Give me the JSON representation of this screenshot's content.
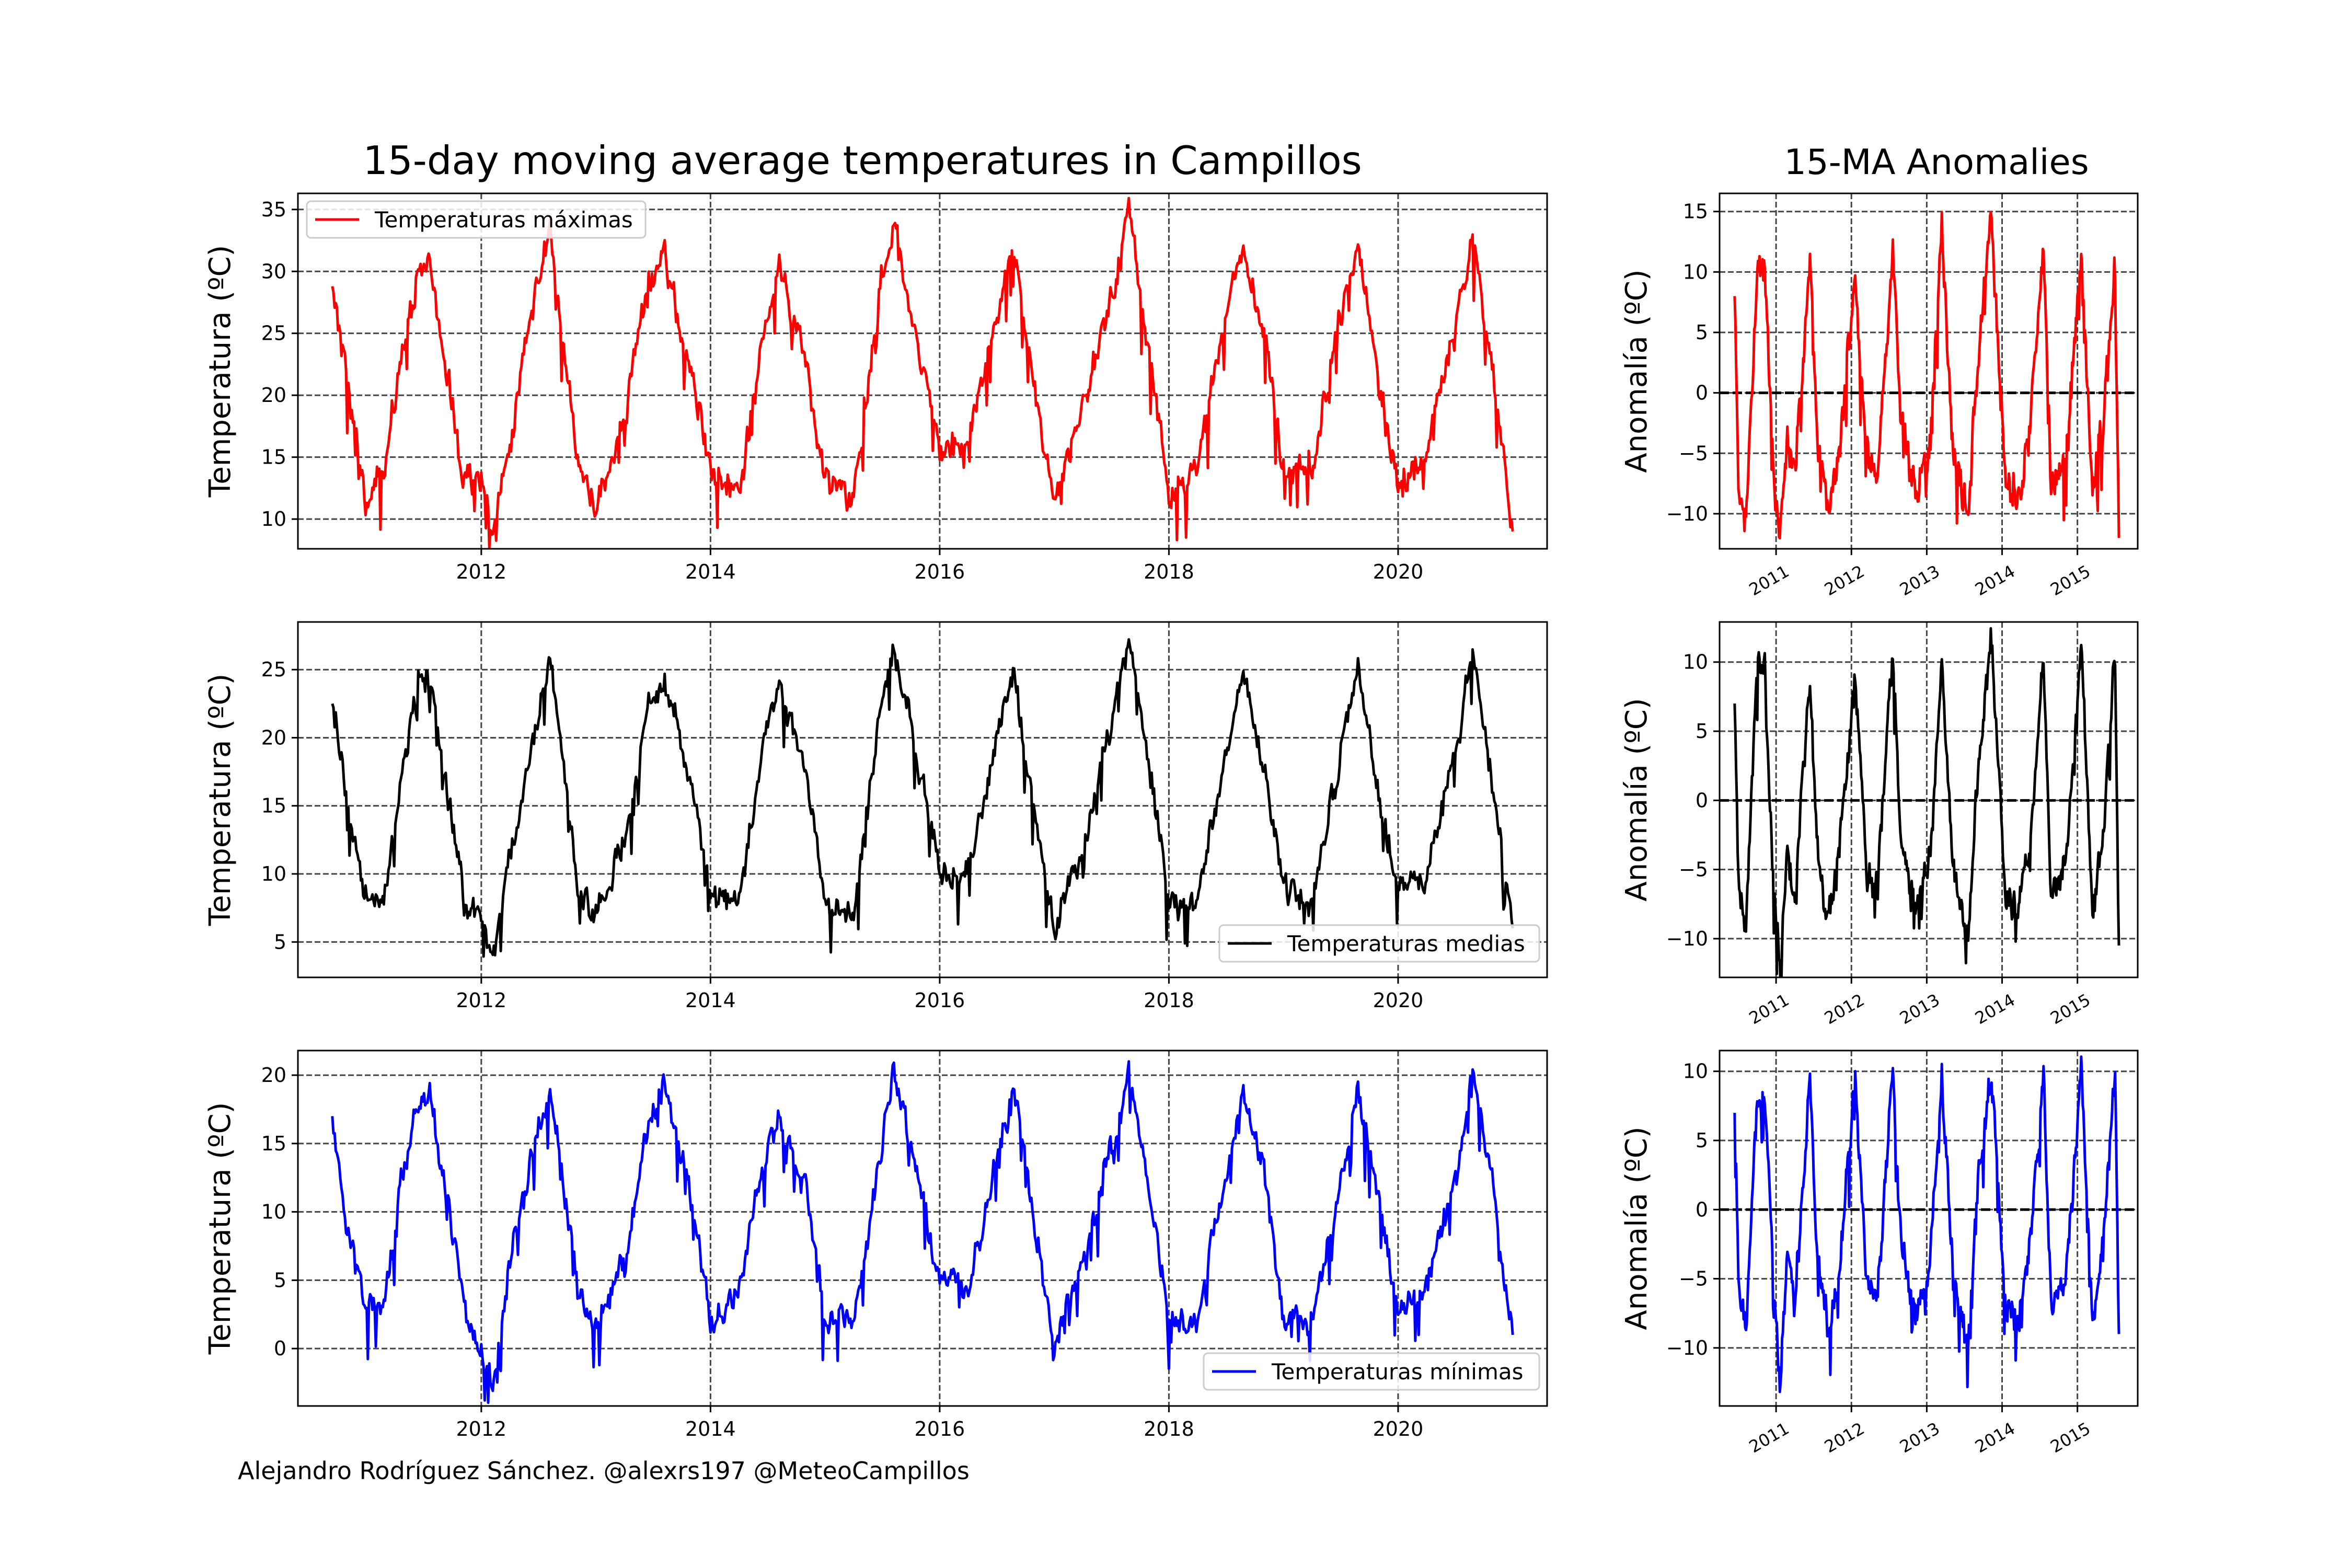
{
  "figure": {
    "title_main": "15-day moving average temperatures in Campillos",
    "title_side": "15-MA Anomalies",
    "credit": "Alejandro Rodríguez Sánchez. @alexrs197 @MeteoCampillos"
  },
  "colors": {
    "maximas": "#ff0000",
    "medias": "#000000",
    "minimas": "#0000ff",
    "grid": "#444444"
  },
  "chart_data": [
    {
      "id": "max_ma",
      "type": "line",
      "title": "15-day moving average temperatures in Campillos",
      "xlabel": "",
      "ylabel": "Temperatura (ºC)",
      "xlim": [
        2010.4,
        2021.3
      ],
      "ylim": [
        7.6,
        36.3
      ],
      "xticks": [
        2012,
        2014,
        2016,
        2018,
        2020
      ],
      "yticks": [
        10,
        15,
        20,
        25,
        30,
        35
      ],
      "grid": true,
      "legend": "top-left",
      "series": [
        {
          "name": "Temperaturas máximas",
          "color": "#ff0000",
          "base": 21,
          "amp": 10,
          "noise": 1.8,
          "dip_amp": 3,
          "x": [
            2010.7,
            2010.85,
            2011.0,
            2011.15,
            2011.3,
            2011.45,
            2011.55,
            2011.7,
            2011.85,
            2012.0,
            2012.1,
            2012.25,
            2012.45,
            2012.6,
            2012.7,
            2012.85,
            2013.0,
            2013.25,
            2013.45,
            2013.6,
            2013.85,
            2014.0,
            2014.25,
            2014.45,
            2014.6,
            2014.85,
            2015.0,
            2015.25,
            2015.5,
            2015.6,
            2015.85,
            2016.0,
            2016.25,
            2016.5,
            2016.65,
            2016.85,
            2017.0,
            2017.25,
            2017.55,
            2017.65,
            2017.85,
            2018.0,
            2018.25,
            2018.5,
            2018.65,
            2018.85,
            2019.0,
            2019.25,
            2019.55,
            2019.65,
            2019.85,
            2020.0,
            2020.25,
            2020.55,
            2020.65,
            2020.85,
            2021.0
          ],
          "y": [
            28.8,
            20,
            11,
            14,
            23,
            30,
            31,
            22,
            13,
            13.5,
            9,
            16,
            27,
            33,
            25,
            14,
            11,
            18,
            29,
            31,
            21,
            14,
            12,
            24,
            30.5,
            22,
            13,
            12,
            30,
            34,
            22,
            16,
            16,
            27,
            32,
            19,
            11,
            19,
            30,
            35,
            22,
            12,
            14,
            27,
            32,
            24,
            14,
            14,
            29,
            32,
            20,
            13,
            15,
            28,
            33,
            20,
            9
          ]
        }
      ]
    },
    {
      "id": "mean_ma",
      "type": "line",
      "xlabel": "",
      "ylabel": "Temperatura (ºC)",
      "xlim": [
        2010.4,
        2021.3
      ],
      "ylim": [
        2.4,
        28.5
      ],
      "xticks": [
        2012,
        2014,
        2016,
        2018,
        2020
      ],
      "yticks": [
        5,
        10,
        15,
        20,
        25
      ],
      "grid": true,
      "legend": "bottom-right",
      "series": [
        {
          "name": "Temperaturas medias",
          "color": "#000000",
          "base": 15.5,
          "amp": 9,
          "noise": 1.5,
          "dip_amp": 2.5,
          "x": [
            2010.7,
            2010.85,
            2011.0,
            2011.15,
            2011.3,
            2011.45,
            2011.55,
            2011.7,
            2011.85,
            2012.0,
            2012.1,
            2012.25,
            2012.45,
            2012.6,
            2012.7,
            2012.85,
            2013.0,
            2013.25,
            2013.45,
            2013.6,
            2013.85,
            2014.0,
            2014.25,
            2014.45,
            2014.6,
            2014.85,
            2015.0,
            2015.25,
            2015.5,
            2015.6,
            2015.85,
            2016.0,
            2016.25,
            2016.5,
            2016.65,
            2016.85,
            2017.0,
            2017.25,
            2017.55,
            2017.65,
            2017.85,
            2018.0,
            2018.25,
            2018.5,
            2018.65,
            2018.85,
            2019.0,
            2019.25,
            2019.55,
            2019.65,
            2019.85,
            2020.0,
            2020.25,
            2020.55,
            2020.65,
            2020.85,
            2021.0
          ],
          "y": [
            22.5,
            14,
            8,
            8,
            17,
            24,
            24.5,
            16,
            8,
            7,
            4,
            11,
            20,
            26,
            19,
            9,
            7,
            12,
            22,
            24.5,
            16,
            8,
            8,
            19,
            24,
            17,
            8,
            7,
            23,
            26.5,
            17,
            10,
            10,
            20,
            25,
            13,
            6,
            12,
            23,
            27,
            17,
            8,
            8,
            19,
            25,
            17,
            9,
            8,
            21,
            25,
            15,
            9,
            10,
            21,
            27,
            15,
            6
          ]
        }
      ]
    },
    {
      "id": "min_ma",
      "type": "line",
      "xlabel": "",
      "ylabel": "Temperatura (ºC)",
      "xlim": [
        2010.4,
        2021.3
      ],
      "ylim": [
        -4.2,
        21.8
      ],
      "xticks": [
        2012,
        2014,
        2016,
        2018,
        2020
      ],
      "yticks": [
        0,
        5,
        10,
        15,
        20
      ],
      "grid": true,
      "legend": "bottom-right",
      "series": [
        {
          "name": "Temperaturas mínimas",
          "color": "#0000ff",
          "base": 9.5,
          "amp": 8.5,
          "noise": 1.6,
          "dip_amp": 2.5,
          "x": [
            2010.7,
            2010.85,
            2011.0,
            2011.15,
            2011.3,
            2011.45,
            2011.55,
            2011.7,
            2011.85,
            2012.0,
            2012.1,
            2012.25,
            2012.45,
            2012.6,
            2012.7,
            2012.85,
            2013.0,
            2013.25,
            2013.45,
            2013.6,
            2013.85,
            2014.0,
            2014.25,
            2014.45,
            2014.6,
            2014.85,
            2015.0,
            2015.25,
            2015.5,
            2015.6,
            2015.85,
            2016.0,
            2016.25,
            2016.5,
            2016.65,
            2016.85,
            2017.0,
            2017.25,
            2017.55,
            2017.65,
            2017.85,
            2018.0,
            2018.25,
            2018.5,
            2018.65,
            2018.85,
            2019.0,
            2019.25,
            2019.55,
            2019.65,
            2019.85,
            2020.0,
            2020.25,
            2020.55,
            2020.65,
            2020.85,
            2021.0
          ],
          "y": [
            17,
            8,
            3,
            3,
            12,
            18,
            18.5,
            11,
            3,
            0,
            -3,
            6,
            15,
            18.5,
            13,
            4,
            2,
            6,
            16,
            19.5,
            10,
            2,
            4,
            13,
            17,
            11,
            2,
            2,
            15,
            20.5,
            11,
            5,
            4,
            14,
            19,
            8,
            0,
            7,
            16,
            20.5,
            10,
            2,
            2,
            13,
            19,
            12,
            2,
            2,
            14,
            19,
            10,
            3,
            4,
            14,
            20.5,
            10,
            1
          ]
        }
      ]
    },
    {
      "id": "max_anom",
      "type": "line",
      "title": "15-MA Anomalies",
      "xlabel": "",
      "ylabel": "Anomalía (ºC)",
      "xlim": [
        2010.25,
        2015.8
      ],
      "ylim": [
        -12.9,
        16.5
      ],
      "xticks": [
        2011,
        2012,
        2013,
        2014,
        2015
      ],
      "yticks": [
        -10,
        -5,
        0,
        5,
        10,
        15
      ],
      "zero_line": true,
      "grid": true,
      "series": [
        {
          "name": "",
          "color": "#ff0000",
          "base": 0,
          "amp": 9.5,
          "noise": 2.2,
          "dip_amp": 3,
          "x": [
            2010.45,
            2010.5,
            2010.6,
            2010.75,
            2010.85,
            2010.95,
            2011.05,
            2011.15,
            2011.25,
            2011.45,
            2011.55,
            2011.7,
            2011.85,
            2012.05,
            2012.2,
            2012.35,
            2012.55,
            2012.65,
            2012.85,
            2013.05,
            2013.2,
            2013.35,
            2013.55,
            2013.65,
            2013.85,
            2014.05,
            2014.2,
            2014.35,
            2014.55,
            2014.65,
            2014.85,
            2015.05,
            2015.2,
            2015.35,
            2015.5,
            2015.55
          ],
          "y": [
            8,
            -8,
            -10,
            10,
            10,
            -5,
            -12,
            -3,
            -7,
            10.5,
            -4,
            -10,
            -4,
            10,
            -5,
            -7,
            12.5,
            -2,
            -9,
            -4,
            13.5,
            -5,
            -10,
            0,
            15,
            -7,
            -9,
            -4,
            12,
            -8,
            -5,
            11.5,
            -9,
            -2,
            11,
            -12
          ]
        }
      ]
    },
    {
      "id": "mean_anom",
      "type": "line",
      "xlabel": "",
      "ylabel": "Anomalía (ºC)",
      "xlim": [
        2010.25,
        2015.8
      ],
      "ylim": [
        -12.8,
        12.9
      ],
      "xticks": [
        2011,
        2012,
        2013,
        2014,
        2015
      ],
      "yticks": [
        -10,
        -5,
        0,
        5,
        10
      ],
      "zero_line": true,
      "grid": true,
      "series": [
        {
          "name": "",
          "color": "#000000",
          "base": 0,
          "amp": 8.5,
          "noise": 1.8,
          "dip_amp": 2.5,
          "x": [
            2010.45,
            2010.5,
            2010.6,
            2010.75,
            2010.85,
            2010.95,
            2011.05,
            2011.15,
            2011.25,
            2011.45,
            2011.55,
            2011.7,
            2011.85,
            2012.05,
            2012.2,
            2012.35,
            2012.55,
            2012.65,
            2012.85,
            2013.05,
            2013.2,
            2013.35,
            2013.55,
            2013.65,
            2013.85,
            2014.05,
            2014.2,
            2014.35,
            2014.55,
            2014.65,
            2014.85,
            2015.05,
            2015.2,
            2015.35,
            2015.5,
            2015.55
          ],
          "y": [
            7,
            -6,
            -9,
            9.5,
            9.5,
            -4,
            -12,
            -3,
            -7,
            9,
            -4,
            -9,
            -3,
            9,
            -5,
            -6,
            11.5,
            -2,
            -8,
            -4,
            10,
            -5,
            -10,
            0,
            12,
            -7,
            -8,
            -4,
            10,
            -7,
            -5,
            11.5,
            -8,
            -2,
            11,
            -10.5
          ]
        }
      ]
    },
    {
      "id": "min_anom",
      "type": "line",
      "xlabel": "",
      "ylabel": "Anomalía (ºC)",
      "xlim": [
        2010.25,
        2015.8
      ],
      "ylim": [
        -14.2,
        11.5
      ],
      "xticks": [
        2011,
        2012,
        2013,
        2014,
        2015
      ],
      "yticks": [
        -10,
        -5,
        0,
        5,
        10
      ],
      "zero_line": true,
      "grid": true,
      "series": [
        {
          "name": "",
          "color": "#0000ff",
          "base": 0,
          "amp": 8,
          "noise": 1.8,
          "dip_amp": 2.5,
          "x": [
            2010.45,
            2010.5,
            2010.6,
            2010.75,
            2010.85,
            2010.95,
            2011.05,
            2011.15,
            2011.25,
            2011.45,
            2011.55,
            2011.7,
            2011.85,
            2012.05,
            2012.2,
            2012.35,
            2012.55,
            2012.65,
            2012.85,
            2013.05,
            2013.2,
            2013.35,
            2013.55,
            2013.65,
            2013.85,
            2014.05,
            2014.2,
            2014.35,
            2014.55,
            2014.65,
            2014.85,
            2015.05,
            2015.2,
            2015.35,
            2015.5,
            2015.55
          ],
          "y": [
            7,
            -5,
            -8,
            8,
            8,
            -4,
            -13,
            -3,
            -7,
            9.5,
            -4,
            -9,
            -3,
            9,
            -5,
            -6,
            10.5,
            -2,
            -8,
            -4,
            9.5,
            -5,
            -10.5,
            0,
            10.5,
            -7,
            -8,
            -4,
            10,
            -7,
            -5,
            10.5,
            -8,
            -2,
            10.5,
            -9
          ]
        }
      ]
    }
  ]
}
